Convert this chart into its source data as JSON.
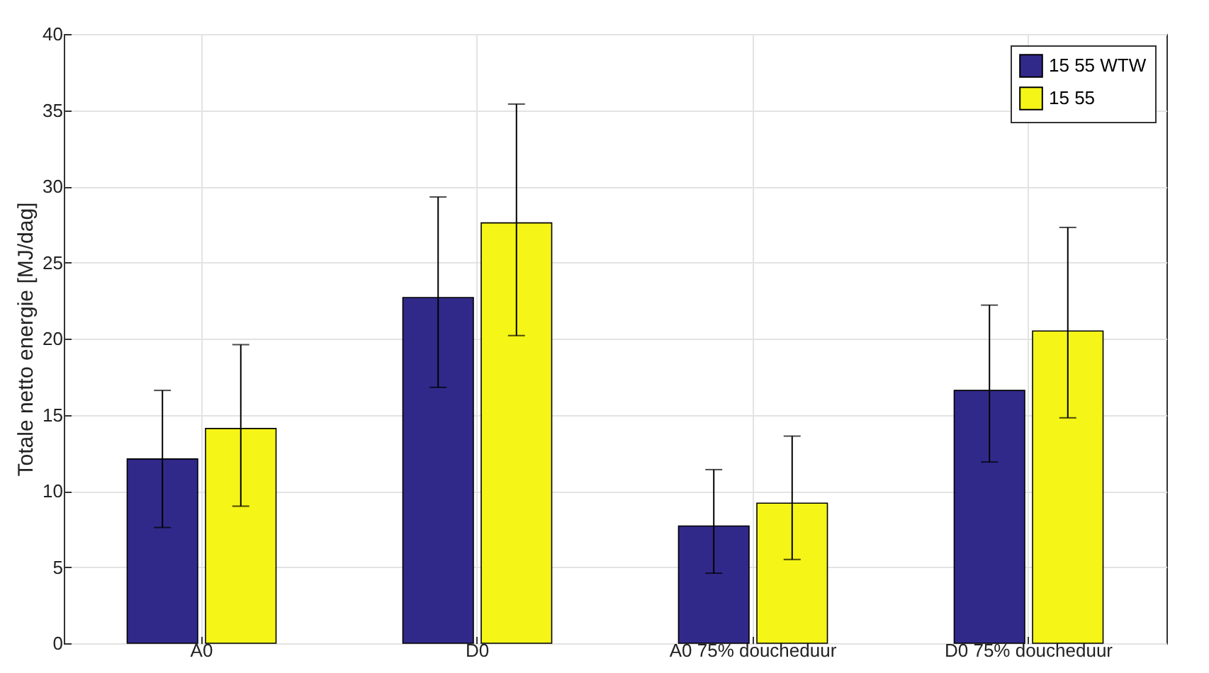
{
  "chart_data": {
    "type": "bar",
    "ylabel": "Totale netto energie [MJ/dag]",
    "categories": [
      "A0",
      "D0",
      "A0 75% doucheduur",
      "D0 75% doucheduur"
    ],
    "series": [
      {
        "name": "15 55 WTW",
        "color": "#31298a",
        "values": [
          12.1,
          22.7,
          7.7,
          16.6
        ],
        "errors": [
          [
            7.6,
            16.6
          ],
          [
            16.8,
            29.3
          ],
          [
            4.6,
            11.4
          ],
          [
            11.9,
            22.2
          ]
        ]
      },
      {
        "name": "15 55",
        "color": "#f5f518",
        "values": [
          14.1,
          27.6,
          9.2,
          20.5
        ],
        "errors": [
          [
            9,
            19.6
          ],
          [
            20.2,
            35.4
          ],
          [
            5.5,
            13.6
          ],
          [
            14.8,
            27.3
          ]
        ]
      }
    ],
    "ylim": [
      0,
      40
    ],
    "yticks": [
      0,
      5,
      10,
      15,
      20,
      25,
      30,
      35,
      40
    ],
    "grid": true,
    "legend": "top right"
  }
}
